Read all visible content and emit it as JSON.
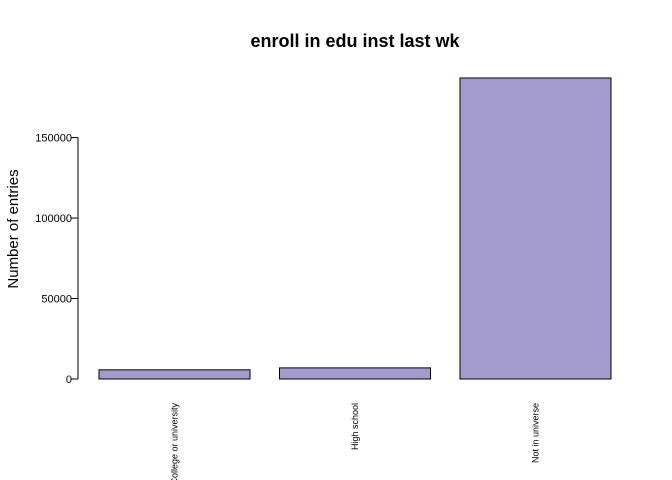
{
  "chart_data": {
    "type": "bar",
    "title": "enroll in edu inst last wk",
    "xlabel": "",
    "ylabel": "Number of entries",
    "categories": [
      "College or university",
      "High school",
      "Not in universe"
    ],
    "values": [
      5700,
      6900,
      187000
    ],
    "yticks": [
      0,
      50000,
      100000,
      150000
    ],
    "ytick_labels": [
      "0",
      "50000",
      "100000",
      "150000"
    ],
    "ylim": [
      0,
      187000
    ],
    "bar_color": "#a29bcb",
    "grid": false,
    "legend": "none"
  }
}
